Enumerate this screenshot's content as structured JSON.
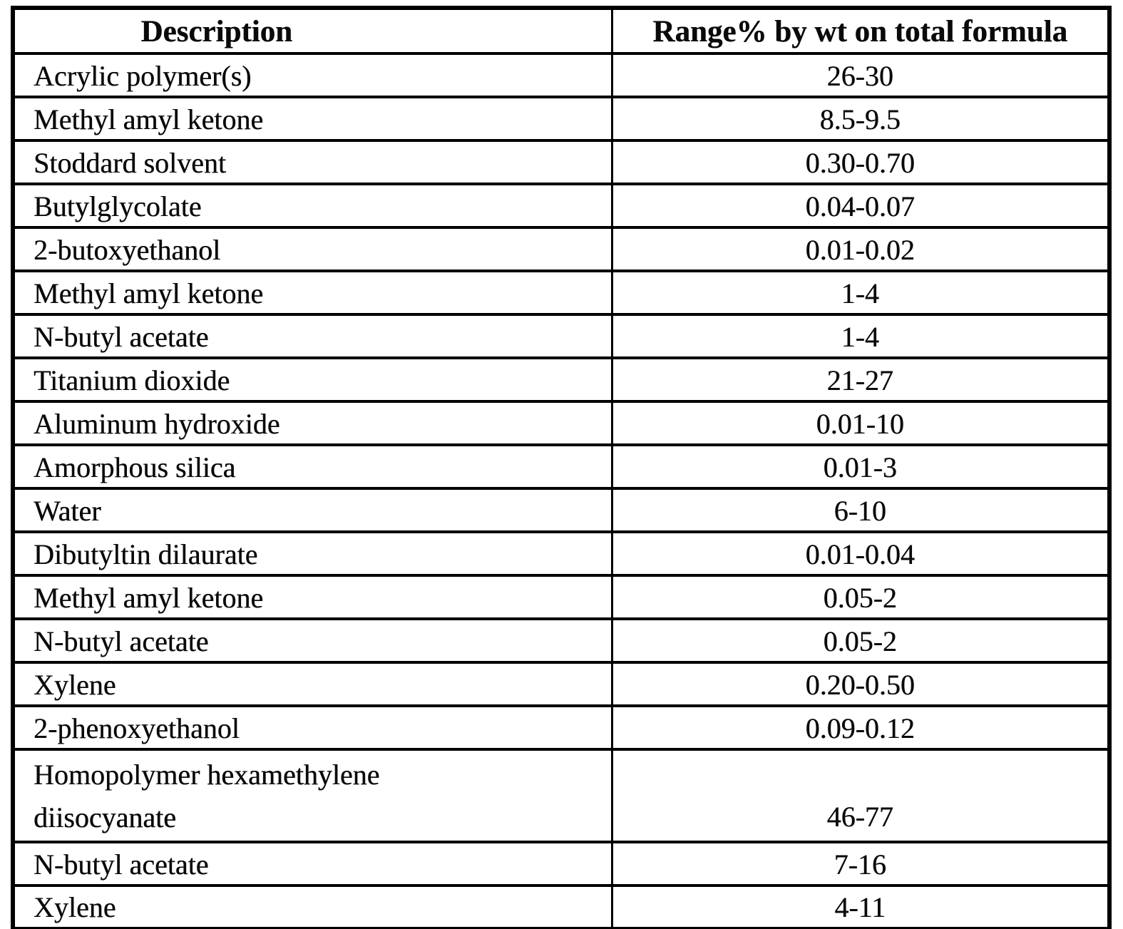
{
  "table": {
    "headers": {
      "description": "Description",
      "range": "Range% by wt on total formula"
    },
    "rows": [
      {
        "description": "Acrylic polymer(s)",
        "range": "26-30"
      },
      {
        "description": "Methyl amyl ketone",
        "range": "8.5-9.5"
      },
      {
        "description": "Stoddard solvent",
        "range": "0.30-0.70"
      },
      {
        "description": "Butylglycolate",
        "range": "0.04-0.07"
      },
      {
        "description": "2-butoxyethanol",
        "range": "0.01-0.02"
      },
      {
        "description": "Methyl amyl ketone",
        "range": "1-4"
      },
      {
        "description": "N-butyl acetate",
        "range": "1-4"
      },
      {
        "description": "Titanium dioxide",
        "range": "21-27"
      },
      {
        "description": "Aluminum hydroxide",
        "range": "0.01-10"
      },
      {
        "description": "Amorphous silica",
        "range": "0.01-3"
      },
      {
        "description": "Water",
        "range": "6-10"
      },
      {
        "description": "Dibutyltin dilaurate",
        "range": "0.01-0.04"
      },
      {
        "description": "Methyl amyl ketone",
        "range": "0.05-2"
      },
      {
        "description": "N-butyl acetate",
        "range": "0.05-2"
      },
      {
        "description": "Xylene",
        "range": "0.20-0.50"
      },
      {
        "description": "2-phenoxyethanol",
        "range": "0.09-0.12"
      },
      {
        "description": "Homopolymer hexamethylene diisocyanate",
        "range": "46-77"
      },
      {
        "description": "N-butyl acetate",
        "range": "7-16"
      },
      {
        "description": "Xylene",
        "range": "4-11"
      }
    ]
  }
}
